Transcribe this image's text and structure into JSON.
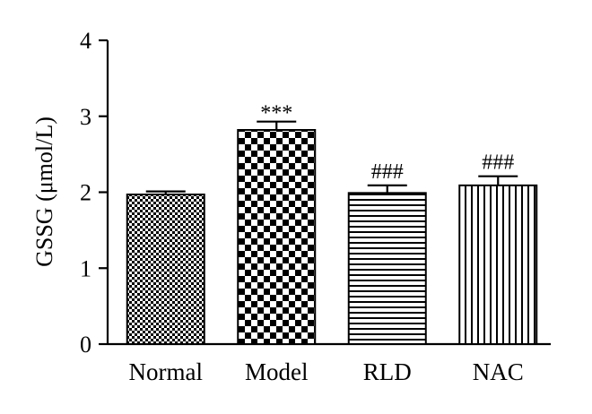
{
  "chart_data": {
    "type": "bar",
    "categories": [
      "Normal",
      "Model",
      "RLD",
      "NAC"
    ],
    "values": [
      1.97,
      2.82,
      1.99,
      2.09
    ],
    "errors": [
      0.04,
      0.11,
      0.1,
      0.12
    ],
    "annotations": [
      "",
      "***",
      "###",
      "###"
    ],
    "fill_patterns": [
      "fine-checker",
      "coarse-checker",
      "horizontal-lines",
      "vertical-lines"
    ],
    "ylabel": "GSSG (μmol/L)",
    "xlabel": "",
    "ylim": [
      0,
      4
    ],
    "yticks": [
      "0",
      "1",
      "2",
      "3",
      "4"
    ],
    "grid": false,
    "legend": "none",
    "colors": {
      "ink": "#000000",
      "background": "#ffffff"
    }
  }
}
